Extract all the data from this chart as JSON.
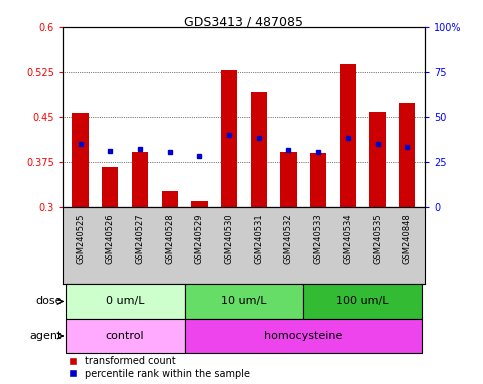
{
  "title": "GDS3413 / 487085",
  "samples": [
    "GSM240525",
    "GSM240526",
    "GSM240527",
    "GSM240528",
    "GSM240529",
    "GSM240530",
    "GSM240531",
    "GSM240532",
    "GSM240533",
    "GSM240534",
    "GSM240535",
    "GSM240848"
  ],
  "red_values": [
    0.457,
    0.367,
    0.392,
    0.328,
    0.31,
    0.528,
    0.492,
    0.392,
    0.39,
    0.538,
    0.458,
    0.473
  ],
  "blue_values": [
    0.405,
    0.393,
    0.397,
    0.392,
    0.386,
    0.42,
    0.416,
    0.396,
    0.392,
    0.416,
    0.406,
    0.4
  ],
  "ylim_left": [
    0.3,
    0.6
  ],
  "ylim_right": [
    0,
    100
  ],
  "yticks_left": [
    0.3,
    0.375,
    0.45,
    0.525,
    0.6
  ],
  "ytick_labels_left": [
    "0.3",
    "0.375",
    "0.45",
    "0.525",
    "0.6"
  ],
  "yticks_right": [
    0,
    25,
    50,
    75,
    100
  ],
  "ytick_labels_right": [
    "0",
    "25",
    "50",
    "75",
    "100%"
  ],
  "bar_color": "#cc0000",
  "dot_color": "#0000cc",
  "dose_groups": [
    {
      "label": "0 um/L",
      "start": 0,
      "end": 4
    },
    {
      "label": "10 um/L",
      "start": 4,
      "end": 8
    },
    {
      "label": "100 um/L",
      "start": 8,
      "end": 12
    }
  ],
  "dose_colors": [
    "#ccffcc",
    "#66dd66",
    "#33bb33"
  ],
  "agent_groups": [
    {
      "label": "control",
      "start": 0,
      "end": 4
    },
    {
      "label": "homocysteine",
      "start": 4,
      "end": 12
    }
  ],
  "agent_colors": [
    "#ffaaff",
    "#ee44ee"
  ],
  "legend_red": "transformed count",
  "legend_blue": "percentile rank within the sample",
  "dose_label": "dose",
  "agent_label": "agent",
  "bg_color": "#ffffff",
  "xtick_bg": "#cccccc"
}
